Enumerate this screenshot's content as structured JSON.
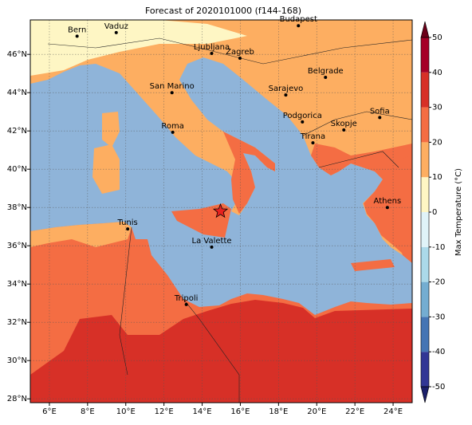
{
  "chart_data": {
    "type": "map",
    "title": "Forecast of 2020101000 (f144-168)",
    "xlim": [
      5,
      25
    ],
    "ylim": [
      27.8,
      47.8
    ],
    "grid": true,
    "xticks": [
      {
        "value": 6,
        "label": "6°E"
      },
      {
        "value": 8,
        "label": "8°E"
      },
      {
        "value": 10,
        "label": "10°E"
      },
      {
        "value": 12,
        "label": "12°E"
      },
      {
        "value": 14,
        "label": "14°E"
      },
      {
        "value": 16,
        "label": "16°E"
      },
      {
        "value": 18,
        "label": "18°E"
      },
      {
        "value": 20,
        "label": "20°E"
      },
      {
        "value": 22,
        "label": "22°E"
      },
      {
        "value": 24,
        "label": "24°E"
      }
    ],
    "yticks": [
      {
        "value": 28,
        "label": "28°N"
      },
      {
        "value": 30,
        "label": "30°N"
      },
      {
        "value": 32,
        "label": "32°N"
      },
      {
        "value": 34,
        "label": "34°N"
      },
      {
        "value": 36,
        "label": "36°N"
      },
      {
        "value": 38,
        "label": "38°N"
      },
      {
        "value": 40,
        "label": "40°N"
      },
      {
        "value": 42,
        "label": "42°N"
      },
      {
        "value": 44,
        "label": "44°N"
      },
      {
        "value": 46,
        "label": "46°N"
      }
    ],
    "cities": [
      {
        "name": "Bern",
        "lon": 7.45,
        "lat": 46.95
      },
      {
        "name": "Vaduz",
        "lon": 9.5,
        "lat": 47.14
      },
      {
        "name": "Budapest",
        "lon": 19.04,
        "lat": 47.5
      },
      {
        "name": "Ljubljana",
        "lon": 14.5,
        "lat": 46.05
      },
      {
        "name": "Zagreb",
        "lon": 15.98,
        "lat": 45.8
      },
      {
        "name": "Belgrade",
        "lon": 20.46,
        "lat": 44.8
      },
      {
        "name": "San Marino",
        "lon": 12.42,
        "lat": 44.0
      },
      {
        "name": "Sarajevo",
        "lon": 18.38,
        "lat": 43.88
      },
      {
        "name": "Sofia",
        "lon": 23.3,
        "lat": 42.7
      },
      {
        "name": "Roma",
        "lon": 12.46,
        "lat": 41.93
      },
      {
        "name": "Podgorica",
        "lon": 19.25,
        "lat": 42.47
      },
      {
        "name": "Skopje",
        "lon": 21.42,
        "lat": 42.05
      },
      {
        "name": "Tirana",
        "lon": 19.8,
        "lat": 41.38
      },
      {
        "name": "Athens",
        "lon": 23.7,
        "lat": 38.0
      },
      {
        "name": "Tunis",
        "lon": 10.1,
        "lat": 36.88
      },
      {
        "name": "La Valette",
        "lon": 14.5,
        "lat": 35.93
      },
      {
        "name": "Tripoli",
        "lon": 13.17,
        "lat": 32.93
      }
    ],
    "marker": {
      "lon": 14.96,
      "lat": 37.8,
      "color": "#e8211f"
    },
    "colorbar": {
      "label": "Max Temperature (°C)",
      "ticks": [
        -50,
        -40,
        -30,
        -20,
        -10,
        0,
        10,
        20,
        30,
        40,
        50
      ],
      "colors": [
        "#313695",
        "#4575b4",
        "#74add1",
        "#abd9e9",
        "#e0f3f8",
        "#fef6c4",
        "#fdae61",
        "#f46d43",
        "#d73027",
        "#a50026"
      ],
      "extend_colors": [
        "#1b1f6b",
        "#6b0019"
      ]
    }
  }
}
